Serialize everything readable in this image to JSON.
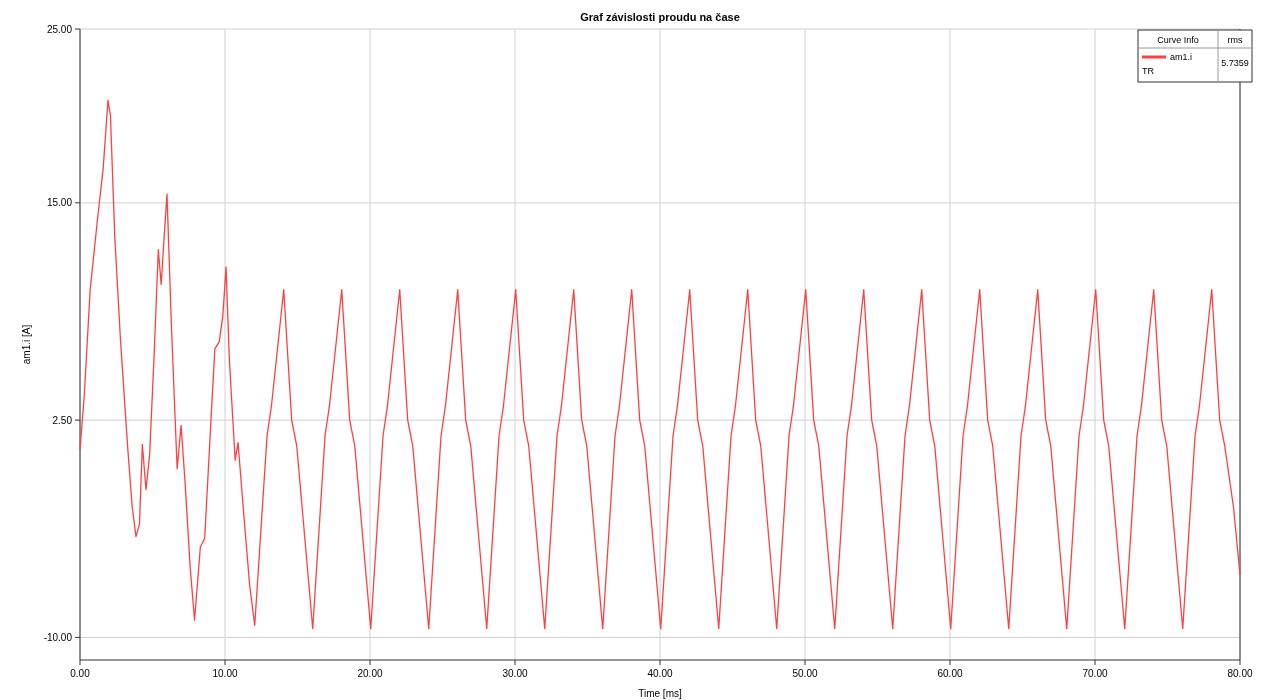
{
  "chart_data": {
    "type": "line",
    "title": "Graf závislosti proudu na čase",
    "xlabel": "Time [ms]",
    "ylabel": "am1.i [A]",
    "xlim": [
      0,
      80
    ],
    "xticks": [
      {
        "value": 0,
        "label": "0.00"
      },
      {
        "value": 10,
        "label": "10.00"
      },
      {
        "value": 20,
        "label": "20.00"
      },
      {
        "value": 30,
        "label": "30.00"
      },
      {
        "value": 40,
        "label": "40.00"
      },
      {
        "value": 50,
        "label": "50.00"
      },
      {
        "value": 60,
        "label": "60.00"
      },
      {
        "value": 70,
        "label": "70.00"
      },
      {
        "value": 80,
        "label": "80.00"
      }
    ],
    "ylim": [
      -11.3,
      25
    ],
    "yticks": [
      {
        "value": -10,
        "label": "-10.00"
      },
      {
        "value": 2.5,
        "label": "2.50"
      },
      {
        "value": 15,
        "label": "15.00"
      },
      {
        "value": 25,
        "label": "25.00"
      }
    ],
    "grid": true,
    "legend": "top right",
    "marker": "none",
    "line_style": "solid",
    "annotations": [
      "Curve Info",
      "rms",
      "TR",
      "5.7359"
    ],
    "series": [
      {
        "name": "am1.i",
        "color": "#ff4040",
        "x": [
          0,
          0.3,
          0.7,
          1.2,
          1.6,
          1.93,
          2.1,
          2.4,
          2.8,
          3.3,
          3.6,
          3.86,
          4.1,
          4.3,
          4.55,
          4.8,
          5.1,
          5.4,
          5.6,
          5.8,
          6.0,
          6.3,
          6.7,
          6.97,
          7.24,
          7.6,
          7.9,
          8.3,
          8.6,
          9.0,
          9.3,
          9.6,
          9.85,
          10.07,
          10.3,
          10.7,
          10.9,
          11.3,
          11.7,
          12.05,
          12.9,
          13.2,
          14.05,
          14.6,
          14.95,
          16.05,
          16.9,
          17.2,
          18.05,
          18.6,
          18.95,
          20.05,
          20.9,
          21.2,
          22.05,
          22.6,
          22.95,
          24.05,
          24.9,
          25.2,
          26.05,
          26.6,
          26.95,
          28.05,
          28.9,
          29.2,
          30.05,
          30.6,
          30.95,
          32.05,
          32.9,
          33.2,
          34.05,
          34.6,
          34.95,
          36.05,
          36.9,
          37.2,
          38.05,
          38.6,
          38.95,
          40.05,
          40.9,
          41.2,
          42.05,
          42.6,
          42.95,
          44.05,
          44.9,
          45.2,
          46.05,
          46.6,
          46.95,
          48.05,
          48.9,
          49.2,
          50.05,
          50.6,
          50.95,
          52.05,
          52.9,
          53.2,
          54.05,
          54.6,
          54.95,
          56.05,
          56.9,
          57.2,
          58.05,
          58.6,
          58.95,
          60.05,
          60.9,
          61.2,
          62.05,
          62.6,
          62.95,
          64.05,
          64.9,
          65.2,
          66.05,
          66.6,
          66.95,
          68.05,
          68.9,
          69.2,
          70.05,
          70.6,
          70.95,
          72.05,
          72.9,
          73.2,
          74.05,
          74.6,
          74.95,
          76.05,
          76.9,
          77.2,
          78.05,
          78.6,
          78.95,
          79.55,
          80
        ],
        "values": [
          0.8,
          4,
          10,
          14,
          17,
          20.9,
          20,
          13,
          7,
          0.8,
          -2.5,
          -4.2,
          -3.5,
          1.1,
          -1.5,
          0.5,
          6,
          12.3,
          10.3,
          13,
          15.5,
          8,
          -0.3,
          2.2,
          -1,
          -6,
          -9,
          -4.8,
          -4.3,
          2,
          6.6,
          7,
          8.5,
          11.3,
          6,
          0.2,
          1.2,
          -3,
          -7,
          -9.3,
          1.6,
          3.3,
          10,
          2.5,
          1,
          -9.5,
          1.6,
          3.3,
          10,
          2.5,
          1,
          -9.5,
          1.6,
          3.3,
          10,
          2.5,
          1,
          -9.5,
          1.6,
          3.3,
          10,
          2.5,
          1,
          -9.5,
          1.6,
          3.3,
          10,
          2.5,
          1,
          -9.5,
          1.6,
          3.3,
          10,
          2.5,
          1,
          -9.5,
          1.6,
          3.3,
          10,
          2.5,
          1,
          -9.5,
          1.6,
          3.3,
          10,
          2.5,
          1,
          -9.5,
          1.6,
          3.3,
          10,
          2.5,
          1,
          -9.5,
          1.6,
          3.3,
          10,
          2.5,
          1,
          -9.5,
          1.6,
          3.3,
          10,
          2.5,
          1,
          -9.5,
          1.6,
          3.3,
          10,
          2.5,
          1,
          -9.5,
          1.6,
          3.3,
          10,
          2.5,
          1,
          -9.5,
          1.6,
          3.3,
          10,
          2.5,
          1,
          -9.5,
          1.6,
          3.3,
          10,
          2.5,
          1,
          -9.5,
          1.6,
          3.3,
          10,
          2.5,
          1,
          -9.5,
          1.6,
          3.3,
          10,
          2.5,
          1,
          -2.5,
          -6.4
        ]
      }
    ]
  }
}
